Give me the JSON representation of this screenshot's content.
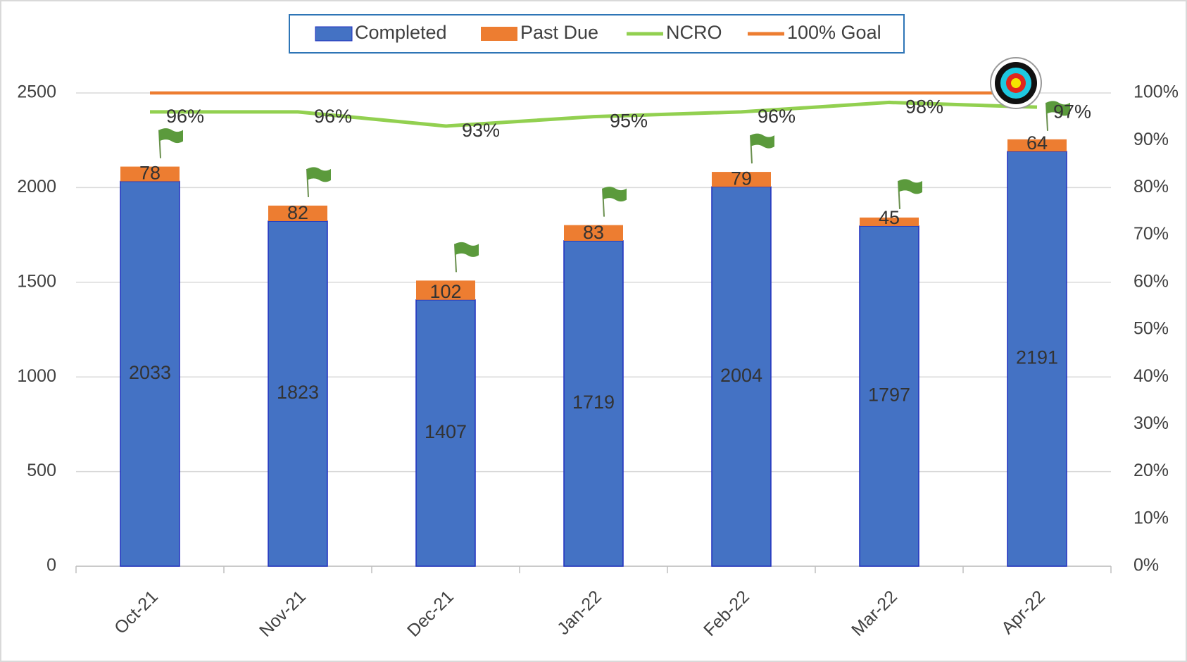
{
  "chart_data": {
    "type": "bar",
    "categories": [
      "Oct-21",
      "Nov-21",
      "Dec-21",
      "Jan-22",
      "Feb-22",
      "Mar-22",
      "Apr-22"
    ],
    "series": [
      {
        "name": "Completed",
        "color": "#4472c4",
        "values": [
          2033,
          1823,
          1407,
          1719,
          2004,
          1797,
          2191
        ]
      },
      {
        "name": "Past Due",
        "color": "#ed7d31",
        "values": [
          78,
          82,
          102,
          83,
          79,
          45,
          64
        ]
      },
      {
        "name": "NCRO",
        "color": "#92d050",
        "axis": "y2",
        "values": [
          96,
          96,
          93,
          95,
          96,
          98,
          97
        ],
        "value_labels": [
          "96%",
          "96%",
          "93%",
          "95%",
          "96%",
          "98%",
          "97%"
        ]
      },
      {
        "name": "100% Goal",
        "color": "#ed7d31",
        "axis": "y2",
        "values": [
          100,
          100,
          100,
          100,
          100,
          100,
          100
        ]
      }
    ],
    "ylim": [
      0,
      2500
    ],
    "yticks": [
      0,
      500,
      1000,
      1500,
      2000,
      2500
    ],
    "y2lim": [
      0,
      100
    ],
    "y2ticks": [
      {
        "value": 0,
        "label": "0%"
      },
      {
        "value": 10,
        "label": "10%"
      },
      {
        "value": 20,
        "label": "20%"
      },
      {
        "value": 30,
        "label": "30%"
      },
      {
        "value": 40,
        "label": "40%"
      },
      {
        "value": 50,
        "label": "50%"
      },
      {
        "value": 60,
        "label": "60%"
      },
      {
        "value": 70,
        "label": "70%"
      },
      {
        "value": 80,
        "label": "80%"
      },
      {
        "value": 90,
        "label": "90%"
      },
      {
        "value": 100,
        "label": "100%"
      }
    ],
    "grid": true,
    "legend": "top"
  }
}
